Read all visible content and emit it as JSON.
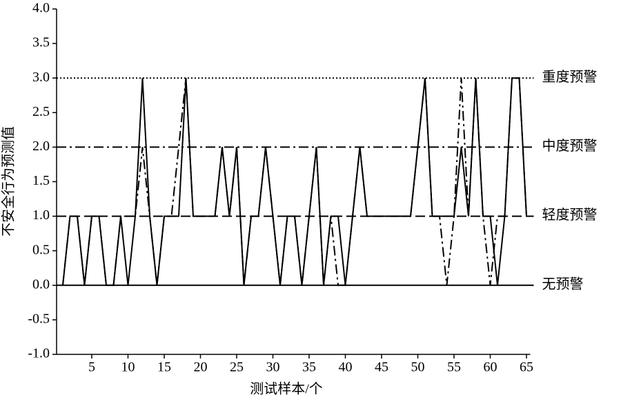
{
  "chart_data": {
    "type": "line",
    "x_label": "测试样本/个",
    "y_label": "不安全行为预测值",
    "x": [
      1,
      2,
      3,
      4,
      5,
      6,
      7,
      8,
      9,
      10,
      11,
      12,
      13,
      14,
      15,
      16,
      17,
      18,
      19,
      20,
      21,
      22,
      23,
      24,
      25,
      26,
      27,
      28,
      29,
      30,
      31,
      32,
      33,
      34,
      35,
      36,
      37,
      38,
      39,
      40,
      41,
      42,
      43,
      44,
      45,
      46,
      47,
      48,
      49,
      50,
      51,
      52,
      53,
      54,
      55,
      56,
      57,
      58,
      59,
      60,
      61,
      62,
      63,
      64,
      65
    ],
    "series": [
      {
        "color": "#000000",
        "dash": "solid",
        "values": [
          0,
          1,
          1,
          0,
          1,
          1,
          0,
          0,
          1,
          0,
          1,
          3,
          1,
          0,
          1,
          1,
          1,
          3,
          1,
          1,
          1,
          1,
          2,
          1,
          2,
          0,
          1,
          1,
          2,
          1,
          0,
          1,
          1,
          0,
          1,
          2,
          0,
          1,
          1,
          0,
          1,
          2,
          1,
          1,
          1,
          1,
          1,
          1,
          1,
          2,
          3,
          1,
          1,
          1,
          1,
          2,
          1,
          3,
          1,
          1,
          0,
          1,
          3,
          3,
          1
        ]
      },
      {
        "color": "#000000",
        "dash": "dashdot",
        "values": [
          0,
          1,
          1,
          0,
          1,
          1,
          0,
          0,
          1,
          1,
          1,
          2,
          1,
          0,
          1,
          1,
          2,
          3,
          1,
          1,
          1,
          1,
          2,
          1,
          2,
          0,
          1,
          1,
          2,
          1,
          0,
          1,
          1,
          0,
          1,
          2,
          0,
          1,
          0,
          0,
          1,
          2,
          1,
          1,
          1,
          1,
          1,
          1,
          1,
          2,
          3,
          1,
          1,
          0,
          1,
          3,
          1,
          3,
          1,
          0,
          1,
          1,
          3,
          3,
          1
        ]
      }
    ],
    "thresholds": [
      {
        "value": 3,
        "label": "重度预警",
        "dash": "dotted"
      },
      {
        "value": 2,
        "label": "中度预警",
        "dash": "dashdot"
      },
      {
        "value": 1,
        "label": "轻度预警",
        "dash": "dashed"
      },
      {
        "value": 0,
        "label": "无预警",
        "dash": "solid"
      }
    ],
    "xlim": [
      0,
      66
    ],
    "ylim": [
      -1,
      4
    ],
    "xticks": [
      5,
      10,
      15,
      20,
      25,
      30,
      35,
      40,
      45,
      50,
      55,
      60,
      65
    ],
    "yticks": [
      {
        "value": 4,
        "label": "4.0"
      },
      {
        "value": 3.5,
        "label": "3.5"
      },
      {
        "value": 3,
        "label": "3.0"
      },
      {
        "value": 2.5,
        "label": "2.5"
      },
      {
        "value": 2,
        "label": "2.0"
      },
      {
        "value": 1.5,
        "label": "1.5"
      },
      {
        "value": 1,
        "label": "1.0"
      },
      {
        "value": 0.5,
        "label": "0.5"
      },
      {
        "value": 0,
        "label": "0.0"
      },
      {
        "value": -0.5,
        "label": "-0.5"
      },
      {
        "value": -1,
        "label": "-1.0"
      }
    ]
  }
}
